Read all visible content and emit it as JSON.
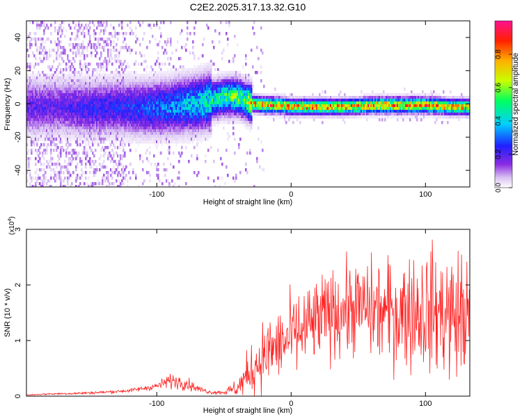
{
  "title": "C2E2.2025.317.13.32.G10",
  "chart_data": [
    {
      "type": "heatmap",
      "title": "C2E2.2025.317.13.32.G10",
      "xlabel": "Height of straight line (km)",
      "ylabel": "Frequency (Hz)",
      "xlim": [
        -197,
        133
      ],
      "ylim": [
        -50,
        50
      ],
      "xticks": [
        -100,
        0,
        100
      ],
      "yticks": [
        -40,
        -20,
        0,
        20,
        40
      ],
      "colorbar": {
        "label": "Normalized spectral amplitude",
        "range": [
          0,
          1
        ],
        "ticks": [
          "0.0",
          "0.2",
          "0.4",
          "0.6",
          "0.8"
        ],
        "colors": [
          "#ffffff",
          "#d9c2f2",
          "#8a2be2",
          "#2020ff",
          "#00cfff",
          "#00ff60",
          "#c8ff00",
          "#ffb000",
          "#ff2000",
          "#ff1090"
        ]
      },
      "ridge": {
        "x": [
          -195,
          -170,
          -150,
          -130,
          -110,
          -90,
          -70,
          -60,
          -50,
          -40,
          -35,
          -30,
          -20,
          -10,
          0,
          20,
          40,
          60,
          80,
          100,
          120,
          133
        ],
        "frequency": [
          -1,
          -1,
          -2,
          -1,
          -2,
          -1,
          1,
          3,
          5,
          5,
          3,
          1,
          0,
          0,
          -1,
          -1,
          -1,
          0,
          0,
          0,
          -1,
          -1
        ],
        "amplitude": [
          0.2,
          0.2,
          0.25,
          0.25,
          0.3,
          0.35,
          0.45,
          0.5,
          0.55,
          0.6,
          0.55,
          0.8,
          0.85,
          0.85,
          0.8,
          0.85,
          0.8,
          0.85,
          0.85,
          0.85,
          0.8,
          0.8
        ]
      }
    },
    {
      "type": "line",
      "xlabel": "Height of straight line (km)",
      "ylabel": "SNR (10 * v/v)",
      "ymultiplier_label": "(x10",
      "ymultiplier_exp": "4",
      "xlim": [
        -197,
        133
      ],
      "ylim": [
        0,
        30000
      ],
      "xticks": [
        -100,
        0,
        100
      ],
      "yticks": [
        0,
        10000,
        20000,
        30000
      ],
      "ytick_labels": [
        "0",
        "1",
        "2",
        "3"
      ],
      "color": "#ff2020",
      "series": [
        {
          "x": [
            -197,
            -180,
            -160,
            -140,
            -120,
            -100,
            -90,
            -80,
            -70,
            -60,
            -50,
            -40,
            -35,
            -30,
            -25,
            -20,
            -10,
            0,
            10,
            20,
            30,
            40,
            50,
            60,
            70,
            80,
            90,
            100,
            110,
            120,
            133
          ],
          "values": [
            200,
            400,
            500,
            700,
            1000,
            1800,
            2800,
            2500,
            1400,
            700,
            700,
            1500,
            2800,
            4500,
            6000,
            7500,
            9000,
            10500,
            12000,
            13500,
            15000,
            15500,
            16000,
            15500,
            15000,
            15000,
            15500,
            15500,
            15000,
            14500,
            14500
          ],
          "spread": [
            100,
            150,
            200,
            250,
            300,
            600,
            1200,
            1200,
            600,
            300,
            400,
            1500,
            3500,
            4000,
            5000,
            5500,
            6000,
            6500,
            7000,
            7000,
            7000,
            7500,
            7500,
            8000,
            8500,
            9000,
            9500,
            10000,
            10000,
            10500,
            10500
          ]
        }
      ]
    }
  ]
}
